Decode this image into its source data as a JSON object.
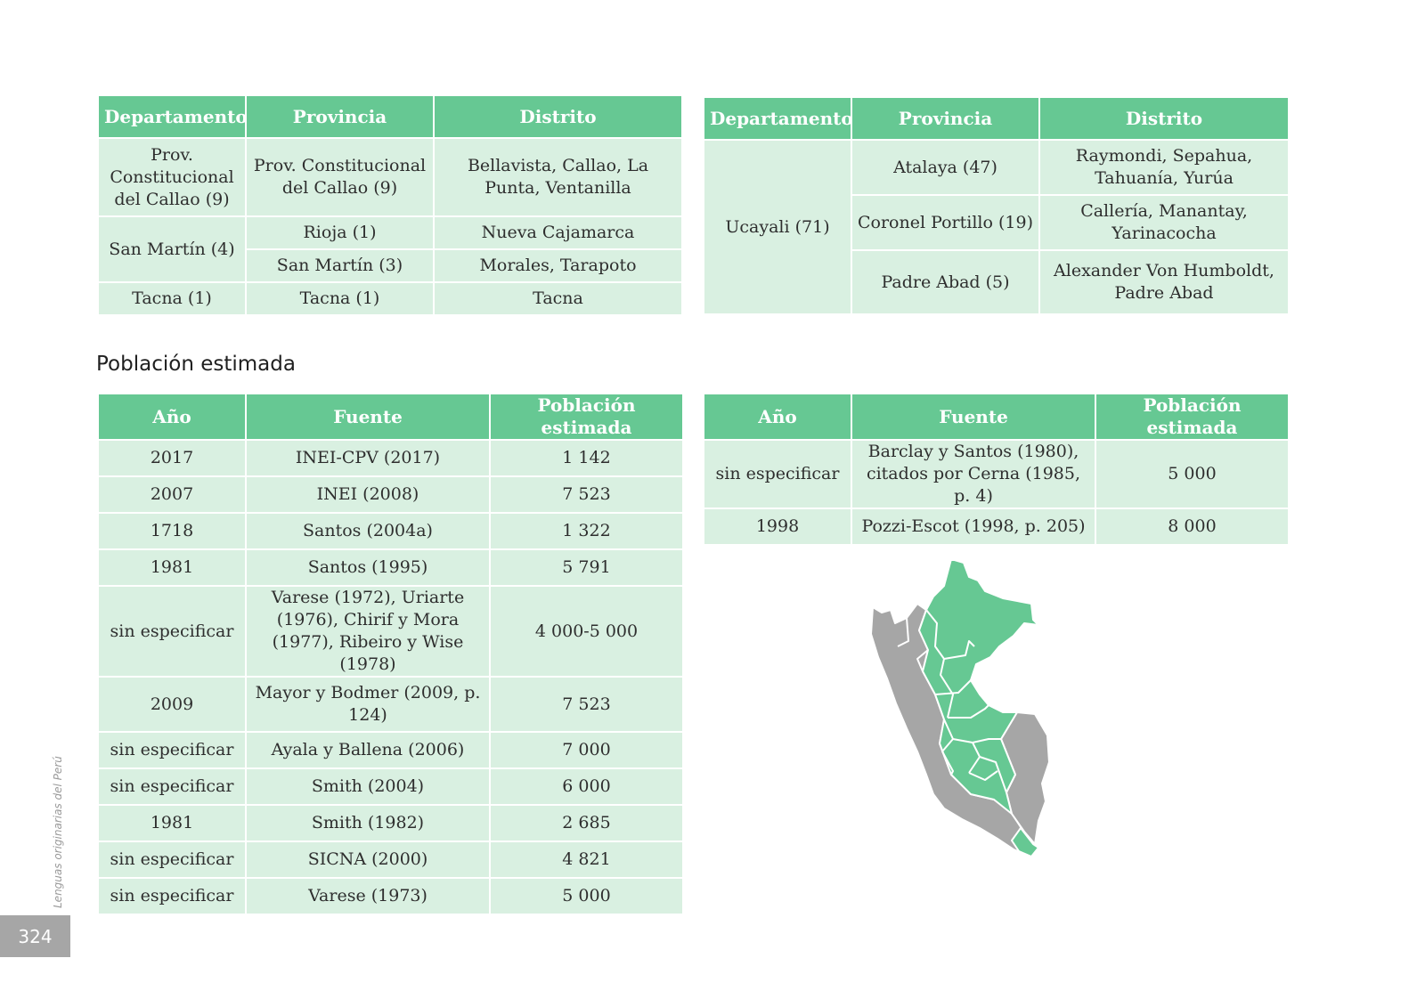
{
  "ubicacion_izq": {
    "headers": [
      "Departamento",
      "Provincia",
      "Distrito"
    ],
    "callao": {
      "dep": "Prov. Constitucional del Callao (9)",
      "prov": "Prov. Constitucional del Callao (9)",
      "dist": "Bellavista, Callao, La Punta, Ventanilla"
    },
    "san_martin": {
      "dep": "San Martín (4)",
      "prov1": "Rioja (1)",
      "dist1": "Nueva Cajamarca",
      "prov2": "San Martín (3)",
      "dist2": "Morales, Tarapoto"
    },
    "tacna": {
      "dep": "Tacna (1)",
      "prov": "Tacna (1)",
      "dist": "Tacna"
    }
  },
  "ubicacion_der": {
    "headers": [
      "Departamento",
      "Provincia",
      "Distrito"
    ],
    "dep": "Ucayali (71)",
    "rows": [
      {
        "prov": "Atalaya (47)",
        "dist": "Raymondi, Sepahua, Tahuanía, Yurúa"
      },
      {
        "prov": "Coronel Portillo (19)",
        "dist": "Callería, Manantay, Yarinacocha"
      },
      {
        "prov": "Padre Abad (5)",
        "dist": "Alexander Von Humboldt, Padre Abad"
      }
    ]
  },
  "section_title": "Población estimada",
  "poblacion_izq": {
    "headers": [
      "Año",
      "Fuente",
      "Población estimada"
    ],
    "rows": [
      {
        "anio": "2017",
        "fuente": "INEI-CPV (2017)",
        "poblacion": "1 142"
      },
      {
        "anio": "2007",
        "fuente": "INEI (2008)",
        "poblacion": "7 523"
      },
      {
        "anio": "1718",
        "fuente": "Santos (2004a)",
        "poblacion": "1 322"
      },
      {
        "anio": "1981",
        "fuente": "Santos (1995)",
        "poblacion": "5 791"
      },
      {
        "anio": "sin especificar",
        "fuente": "Varese (1972), Uriarte (1976), Chirif y Mora (1977), Ribeiro y Wise (1978)",
        "poblacion": "4 000-5 000"
      },
      {
        "anio": "2009",
        "fuente": "Mayor y Bodmer (2009, p. 124)",
        "poblacion": "7 523"
      },
      {
        "anio": "sin especificar",
        "fuente": "Ayala y Ballena (2006)",
        "poblacion": "7 000"
      },
      {
        "anio": "sin especificar",
        "fuente": "Smith (2004)",
        "poblacion": "6 000"
      },
      {
        "anio": "1981",
        "fuente": "Smith (1982)",
        "poblacion": "2 685"
      },
      {
        "anio": "sin especificar",
        "fuente": "SICNA (2000)",
        "poblacion": "4 821"
      },
      {
        "anio": "sin especificar",
        "fuente": "Varese (1973)",
        "poblacion": "5 000"
      }
    ]
  },
  "poblacion_der": {
    "headers": [
      "Año",
      "Fuente",
      "Población estimada"
    ],
    "rows": [
      {
        "anio": "sin especificar",
        "fuente": "Barclay y Santos (1980), citados por Cerna (1985, p. 4)",
        "poblacion": "5 000"
      },
      {
        "anio": "1998",
        "fuente": "Pozzi-Escot (1998, p. 205)",
        "poblacion": "8 000"
      }
    ]
  },
  "side_label": "Lenguas originarias del Perú",
  "page_number": "324",
  "colors": {
    "header_green": "#66c893",
    "cell_green": "#d9f0e1",
    "map_green": "#66c893",
    "map_gray": "#a6a6a6"
  }
}
